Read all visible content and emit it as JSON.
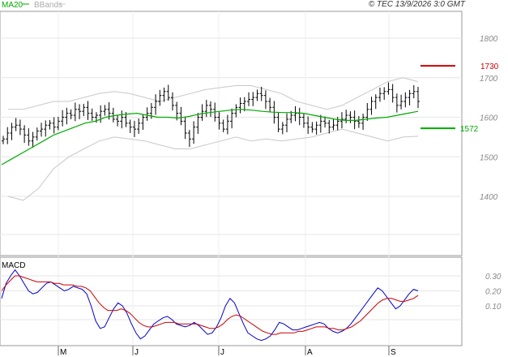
{
  "header": {
    "legend": [
      {
        "label": "MA20",
        "color": "#00aa00"
      },
      {
        "label": "BBands",
        "color": "#bbbbbb"
      }
    ],
    "copyright": "© TEC 13/9/2026 3:0 GMT"
  },
  "chart_data": [
    {
      "type": "ohlc",
      "panel": "price",
      "y_ticks": [
        1400,
        1500,
        1600,
        1700,
        1800
      ],
      "ylim": [
        1300,
        1880
      ],
      "x_ticks": [
        "M",
        "J",
        "J",
        "A",
        "S"
      ],
      "n_points": 110,
      "close_series": [
        1545,
        1560,
        1575,
        1580,
        1570,
        1555,
        1540,
        1550,
        1565,
        1570,
        1580,
        1585,
        1575,
        1590,
        1600,
        1610,
        1605,
        1620,
        1615,
        1625,
        1610,
        1600,
        1605,
        1615,
        1620,
        1610,
        1595,
        1590,
        1600,
        1585,
        1575,
        1570,
        1585,
        1600,
        1610,
        1625,
        1640,
        1655,
        1665,
        1650,
        1630,
        1610,
        1590,
        1560,
        1545,
        1575,
        1600,
        1615,
        1630,
        1620,
        1600,
        1585,
        1570,
        1590,
        1610,
        1625,
        1635,
        1640,
        1645,
        1650,
        1660,
        1655,
        1640,
        1625,
        1600,
        1570,
        1580,
        1595,
        1605,
        1610,
        1600,
        1585,
        1575,
        1570,
        1580,
        1590,
        1585,
        1575,
        1580,
        1590,
        1595,
        1605,
        1600,
        1590,
        1585,
        1600,
        1620,
        1640,
        1650,
        1660,
        1665,
        1670,
        1650,
        1630,
        1640,
        1650,
        1660,
        1665,
        1640
      ],
      "ma20": [
        1480,
        1495,
        1510,
        1525,
        1540,
        1555,
        1565,
        1575,
        1585,
        1590,
        1600,
        1605,
        1608,
        1610,
        1605,
        1600,
        1600,
        1598,
        1602,
        1608,
        1612,
        1615,
        1618,
        1620,
        1618,
        1615,
        1613,
        1612,
        1612,
        1610,
        1605,
        1600,
        1595,
        1592,
        1592,
        1595,
        1598,
        1600,
        1605,
        1610,
        1615
      ],
      "bb_upper": [
        1620,
        1620,
        1630,
        1640,
        1640,
        1650,
        1660,
        1665,
        1660,
        1650,
        1640,
        1650,
        1660,
        1670,
        1675,
        1680,
        1680,
        1670,
        1660,
        1640,
        1630,
        1620,
        1630,
        1650,
        1670,
        1690,
        1700,
        1690
      ],
      "bb_lower": [
        1400,
        1390,
        1420,
        1470,
        1500,
        1520,
        1540,
        1550,
        1545,
        1540,
        1530,
        1520,
        1520,
        1530,
        1540,
        1550,
        1540,
        1545,
        1540,
        1545,
        1550,
        1560,
        1570,
        1560,
        1550,
        1540,
        1550,
        1552
      ],
      "series": [
        {
          "name": "MA20",
          "last": 1572
        },
        {
          "name": "",
          "level": 1730
        }
      ],
      "annotations": [
        {
          "label": "1730",
          "value": 1730,
          "color": "#cc0000"
        },
        {
          "label": "1572",
          "value": 1572,
          "color": "#00aa00"
        }
      ]
    },
    {
      "type": "line",
      "panel": "macd",
      "title": "MACD",
      "y_ticks": [
        10,
        20,
        30
      ],
      "y_tick_labels": [
        "0.10",
        "0.20",
        "0.30"
      ],
      "ylim": [
        -15,
        40
      ],
      "series": [
        {
          "name": "",
          "color": "#0000cc",
          "values": [
            15,
            25,
            30,
            34,
            30,
            25,
            20,
            18,
            19,
            22,
            25,
            26,
            24,
            22,
            20,
            21,
            23,
            22,
            21,
            18,
            10,
            0,
            -5,
            -4,
            2,
            8,
            12,
            10,
            5,
            -2,
            -8,
            -12,
            -10,
            -6,
            -2,
            0,
            2,
            3,
            1,
            -2,
            -3,
            -4,
            -3,
            -1,
            -3,
            -6,
            -9,
            -8,
            -4,
            2,
            10,
            15,
            12,
            5,
            -2,
            -8,
            -10,
            -12,
            -13,
            -12,
            -10,
            -6,
            -1,
            -2,
            -4,
            -6,
            -6,
            -5,
            -4,
            -3,
            -2,
            -1,
            -2,
            -5,
            -7,
            -8,
            -7,
            -5,
            -2,
            2,
            6,
            10,
            14,
            18,
            22,
            20,
            16,
            12,
            8,
            10,
            14,
            18,
            21,
            20
          ]
        },
        {
          "name": "",
          "color": "#cc0000",
          "values": [
            20,
            24,
            27,
            30,
            30,
            29,
            28,
            27,
            26,
            26,
            26,
            26,
            25,
            25,
            24,
            24,
            24,
            23,
            23,
            22,
            20,
            16,
            12,
            9,
            7,
            7,
            7,
            8,
            7,
            5,
            2,
            -1,
            -3,
            -4,
            -4,
            -3,
            -2,
            -1,
            -1,
            -1,
            -2,
            -2,
            -2,
            -2,
            -2,
            -3,
            -4,
            -5,
            -5,
            -4,
            -2,
            1,
            3,
            4,
            3,
            1,
            -1,
            -3,
            -5,
            -7,
            -8,
            -9,
            -9,
            -8,
            -8,
            -8,
            -8,
            -7,
            -7,
            -6,
            -5,
            -4,
            -4,
            -4,
            -5,
            -5,
            -6,
            -6,
            -5,
            -4,
            -2,
            0,
            3,
            6,
            9,
            12,
            14,
            15,
            15,
            14,
            13,
            13,
            14,
            15,
            17
          ]
        }
      ]
    }
  ]
}
